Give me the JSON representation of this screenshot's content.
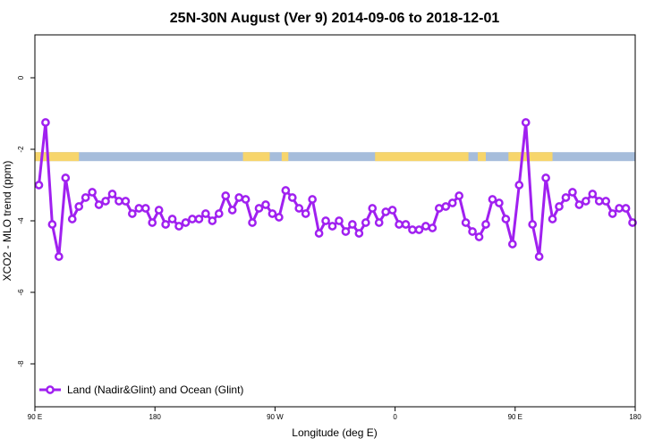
{
  "chart_data": {
    "type": "line",
    "title": "25N-30N August (Ver 9)   2014-09-06 to 2018-12-01",
    "xlabel": "Longitude (deg E)",
    "ylabel": "XCO2 - MLO trend (ppm)",
    "x_tick_labels": [
      "90 E",
      "180",
      "90 W",
      "0",
      "90 E",
      "180"
    ],
    "x_tick_values": [
      90,
      180,
      270,
      360,
      450,
      540
    ],
    "y_ticks": [
      0,
      -2,
      -4,
      -6,
      -8
    ],
    "xlim": [
      90,
      540
    ],
    "ylim": [
      -9.2,
      1.2
    ],
    "band": {
      "y_range": [
        -2.33,
        -2.08
      ],
      "ocean_color": "#a6bddb",
      "land_color": "#f7d56b",
      "land_ranges": [
        [
          90,
          123
        ],
        [
          246,
          266
        ],
        [
          275,
          280
        ],
        [
          345,
          415
        ],
        [
          422,
          428
        ],
        [
          445,
          478
        ]
      ]
    },
    "series": [
      {
        "name": "Land (Nadir&Glint) and Ocean (Glint)",
        "color": "#a020f0",
        "x": [
          93,
          98,
          103,
          108,
          113,
          118,
          123,
          128,
          133,
          138,
          143,
          148,
          153,
          158,
          163,
          168,
          173,
          178,
          183,
          188,
          193,
          198,
          203,
          208,
          213,
          218,
          223,
          228,
          233,
          238,
          243,
          248,
          253,
          258,
          263,
          268,
          273,
          278,
          283,
          288,
          293,
          298,
          303,
          308,
          313,
          318,
          323,
          328,
          333,
          338,
          343,
          348,
          353,
          358,
          363,
          368,
          373,
          378,
          383,
          388,
          393,
          398,
          403,
          408,
          413,
          418,
          423,
          428,
          433,
          438,
          443,
          448,
          453,
          458,
          463,
          468,
          473,
          478,
          483,
          488,
          493,
          498,
          503,
          508,
          513,
          518,
          523,
          528,
          533,
          538
        ],
        "y": [
          -3.0,
          -1.25,
          -4.1,
          -5.0,
          -2.8,
          -3.95,
          -3.6,
          -3.35,
          -3.2,
          -3.55,
          -3.45,
          -3.25,
          -3.45,
          -3.45,
          -3.8,
          -3.65,
          -3.65,
          -4.05,
          -3.7,
          -4.1,
          -3.95,
          -4.15,
          -4.05,
          -3.95,
          -3.95,
          -3.8,
          -4.0,
          -3.8,
          -3.3,
          -3.7,
          -3.35,
          -3.4,
          -4.05,
          -3.65,
          -3.55,
          -3.8,
          -3.9,
          -3.15,
          -3.35,
          -3.65,
          -3.8,
          -3.4,
          -4.35,
          -4.0,
          -4.15,
          -4.0,
          -4.3,
          -4.1,
          -4.35,
          -4.05,
          -3.65,
          -4.05,
          -3.75,
          -3.7,
          -4.1,
          -4.1,
          -4.25,
          -4.25,
          -4.15,
          -4.2,
          -3.65,
          -3.6,
          -3.5,
          -3.3,
          -4.05,
          -4.3,
          -4.45,
          -4.1,
          -3.4,
          -3.5,
          -3.95,
          -4.65,
          -3.0,
          -1.25,
          -4.1,
          -5.0,
          -2.8,
          -3.95,
          -3.6,
          -3.35,
          -3.2,
          -3.55,
          -3.45,
          -3.25,
          -3.45,
          -3.45,
          -3.8,
          -3.65,
          -3.65,
          -4.05
        ]
      }
    ],
    "legend_position": "bottom-left",
    "grid": false
  }
}
